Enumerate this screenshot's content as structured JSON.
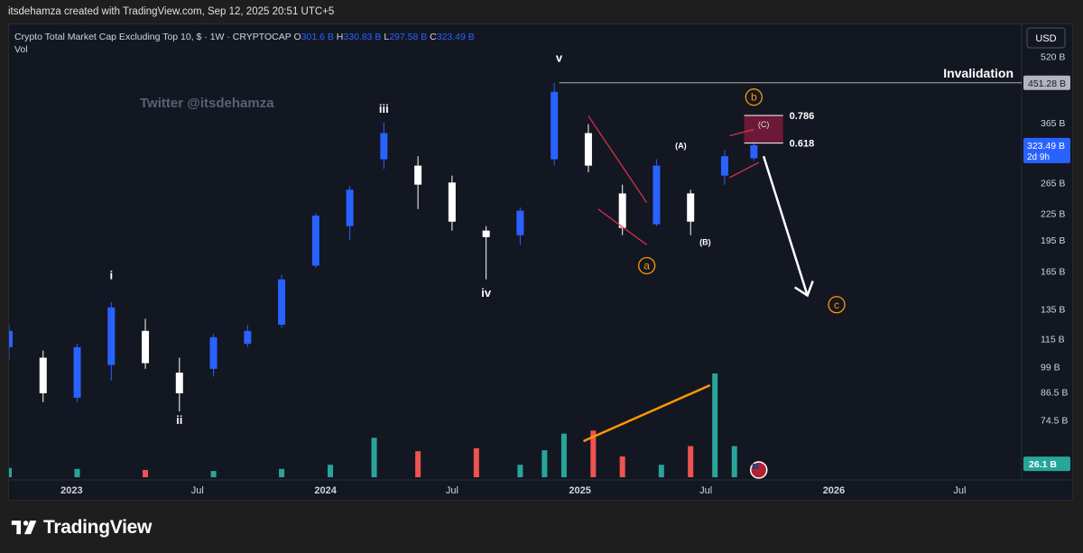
{
  "header": {
    "attribution": "itsdehamza created with TradingView.com, Sep 12, 2025 20:51 UTC+5"
  },
  "footer": {
    "brand": "TradingView"
  },
  "colors": {
    "up": "#2962ff",
    "down": "#ffffff",
    "vol_up": "#26a69a",
    "vol_down": "#ef5350",
    "accent_orange": "#ff9800",
    "fib_box": "#7b1a3a",
    "price_badge": "#2962ff"
  },
  "chart_data": {
    "type": "candlestick",
    "title": "Crypto Total Market Cap Excluding Top 10, $ · 1W · CRYPTOCAP",
    "ohlc_legend": {
      "o_label": "O",
      "o": "301.6 B",
      "h_label": "H",
      "h": "330.83 B",
      "l_label": "L",
      "l": "297.58 B",
      "c_label": "C",
      "c": "323.49 B"
    },
    "volume_label": "Vol",
    "watermark": "Twitter @itsdehamza",
    "currency_button": "USD",
    "y_scale": "log",
    "ylim": [
      56,
      560
    ],
    "y_ticks": [
      {
        "label": "520 B",
        "value": 520
      },
      {
        "label": "365 B",
        "value": 365
      },
      {
        "label": "265 B",
        "value": 265
      },
      {
        "label": "225 B",
        "value": 225
      },
      {
        "label": "195 B",
        "value": 195
      },
      {
        "label": "165 B",
        "value": 165
      },
      {
        "label": "135 B",
        "value": 135
      },
      {
        "label": "115 B",
        "value": 115
      },
      {
        "label": "99 B",
        "value": 99
      },
      {
        "label": "86.5 B",
        "value": 86.5
      },
      {
        "label": "74.5 B",
        "value": 74.5
      }
    ],
    "price_badges": [
      {
        "label": "451.28 B",
        "value": 451.28,
        "style": "grey"
      },
      {
        "label": "323.49 B",
        "sub": "2d 9h",
        "value": 323.49,
        "style": "blue"
      },
      {
        "label": "26.1 B",
        "value": 59,
        "style": "teal"
      }
    ],
    "x_range": [
      "2022-10-03",
      "2026-09-28"
    ],
    "x_ticks": [
      {
        "label": "2023",
        "date": "2023-01-01"
      },
      {
        "label": "Jul",
        "date": "2023-07-01"
      },
      {
        "label": "2024",
        "date": "2024-01-01"
      },
      {
        "label": "Jul",
        "date": "2024-07-01"
      },
      {
        "label": "2025",
        "date": "2025-01-01"
      },
      {
        "label": "Jul",
        "date": "2025-07-01"
      },
      {
        "label": "2026",
        "date": "2026-01-01"
      },
      {
        "label": "Jul",
        "date": "2026-07-01"
      }
    ],
    "candles": [
      {
        "date": "2022-10-03",
        "o": 110,
        "h": 124,
        "l": 103,
        "c": 120
      },
      {
        "date": "2022-11-21",
        "o": 104,
        "h": 108,
        "l": 82,
        "c": 86
      },
      {
        "date": "2023-01-09",
        "o": 84,
        "h": 112,
        "l": 82,
        "c": 110
      },
      {
        "date": "2023-02-27",
        "o": 100,
        "h": 140,
        "l": 92,
        "c": 136
      },
      {
        "date": "2023-04-17",
        "o": 120,
        "h": 128,
        "l": 98,
        "c": 101
      },
      {
        "date": "2023-06-05",
        "o": 96,
        "h": 104,
        "l": 78,
        "c": 86
      },
      {
        "date": "2023-07-24",
        "o": 98,
        "h": 118,
        "l": 94,
        "c": 116
      },
      {
        "date": "2023-09-11",
        "o": 112,
        "h": 124,
        "l": 110,
        "c": 120
      },
      {
        "date": "2023-10-30",
        "o": 124,
        "h": 162,
        "l": 122,
        "c": 158
      },
      {
        "date": "2023-12-18",
        "o": 170,
        "h": 225,
        "l": 168,
        "c": 222
      },
      {
        "date": "2024-02-05",
        "o": 210,
        "h": 260,
        "l": 195,
        "c": 255
      },
      {
        "date": "2024-03-25",
        "o": 300,
        "h": 365,
        "l": 285,
        "c": 345
      },
      {
        "date": "2024-05-13",
        "o": 290,
        "h": 305,
        "l": 230,
        "c": 262
      },
      {
        "date": "2024-07-01",
        "o": 265,
        "h": 275,
        "l": 205,
        "c": 215
      },
      {
        "date": "2024-08-19",
        "o": 205,
        "h": 210,
        "l": 158,
        "c": 198
      },
      {
        "date": "2024-10-07",
        "o": 200,
        "h": 232,
        "l": 190,
        "c": 228
      },
      {
        "date": "2024-11-25",
        "o": 300,
        "h": 451,
        "l": 290,
        "c": 430
      },
      {
        "date": "2025-01-13",
        "o": 345,
        "h": 362,
        "l": 280,
        "c": 290
      },
      {
        "date": "2025-03-03",
        "o": 250,
        "h": 262,
        "l": 200,
        "c": 208
      },
      {
        "date": "2025-04-21",
        "o": 212,
        "h": 300,
        "l": 210,
        "c": 290
      },
      {
        "date": "2025-06-09",
        "o": 250,
        "h": 255,
        "l": 200,
        "c": 215
      },
      {
        "date": "2025-07-28",
        "o": 275,
        "h": 315,
        "l": 262,
        "c": 305
      },
      {
        "date": "2025-09-08",
        "o": 301.6,
        "h": 330.83,
        "l": 297.58,
        "c": 323.49
      }
    ],
    "volume": [
      {
        "date": "2022-10-03",
        "v": 9,
        "up": true
      },
      {
        "date": "2023-01-09",
        "v": 8,
        "up": true
      },
      {
        "date": "2023-04-17",
        "v": 7,
        "up": false
      },
      {
        "date": "2023-07-24",
        "v": 6,
        "up": true
      },
      {
        "date": "2023-10-30",
        "v": 8,
        "up": true
      },
      {
        "date": "2024-01-08",
        "v": 12,
        "up": true
      },
      {
        "date": "2024-03-11",
        "v": 38,
        "up": true
      },
      {
        "date": "2024-05-13",
        "v": 25,
        "up": false
      },
      {
        "date": "2024-08-05",
        "v": 28,
        "up": false
      },
      {
        "date": "2024-10-07",
        "v": 12,
        "up": true
      },
      {
        "date": "2024-11-11",
        "v": 26,
        "up": true
      },
      {
        "date": "2024-12-09",
        "v": 42,
        "up": true
      },
      {
        "date": "2025-01-20",
        "v": 45,
        "up": false
      },
      {
        "date": "2025-03-03",
        "v": 20,
        "up": false
      },
      {
        "date": "2025-04-28",
        "v": 12,
        "up": true
      },
      {
        "date": "2025-06-09",
        "v": 30,
        "up": false
      },
      {
        "date": "2025-07-14",
        "v": 100,
        "up": true
      },
      {
        "date": "2025-08-11",
        "v": 30,
        "up": true
      }
    ],
    "wave_labels": [
      {
        "text": "i",
        "date": "2023-02-27",
        "value": 158
      },
      {
        "text": "ii",
        "date": "2023-06-05",
        "value": 73
      },
      {
        "text": "iii",
        "date": "2024-03-25",
        "value": 385
      },
      {
        "text": "iv",
        "date": "2024-08-19",
        "value": 144
      },
      {
        "text": "v",
        "date": "2024-12-02",
        "value": 505
      },
      {
        "text": "(A)",
        "date": "2025-05-26",
        "value": 318
      },
      {
        "text": "(B)",
        "date": "2025-06-30",
        "value": 190
      }
    ],
    "circled_labels": [
      {
        "text": "a",
        "date": "2025-04-07",
        "value": 170
      },
      {
        "text": "b",
        "date": "2025-09-08",
        "value": 418
      },
      {
        "text": "c",
        "date": "2026-01-05",
        "value": 138
      }
    ],
    "annotations": {
      "invalidation": {
        "text": "Invalidation",
        "value": 451.28
      },
      "fib": [
        {
          "label": "0.786",
          "value": 379
        },
        {
          "label": "0.618",
          "value": 327
        }
      ],
      "fib_box_label": "(C)"
    }
  }
}
